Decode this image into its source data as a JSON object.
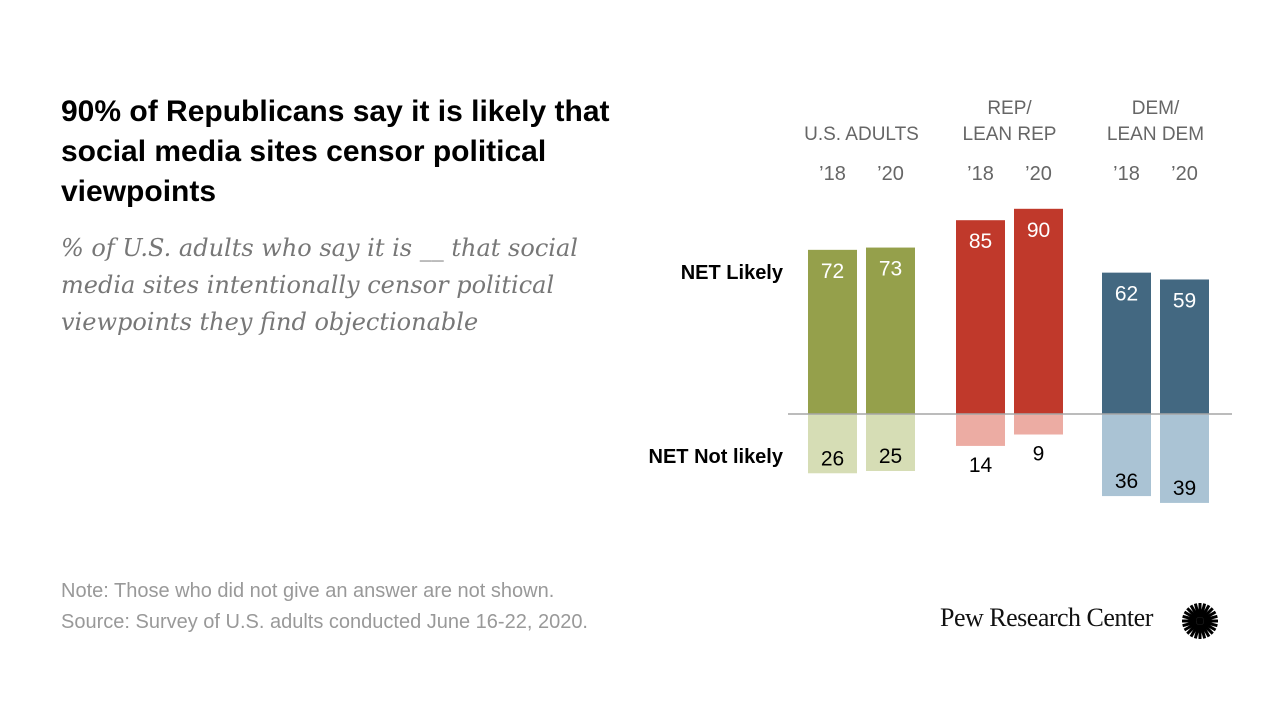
{
  "title": "90% of Republicans say it is likely that social media sites censor political viewpoints",
  "subtitle": "% of U.S. adults who say it is __ that social media sites intentionally censor political viewpoints they find objectionable",
  "note": "Note: Those who did not give an answer are not shown.",
  "source": "Source: Survey of U.S. adults conducted June 16-22, 2020.",
  "logo": "Pew Research Center",
  "chart_data": {
    "type": "bar",
    "row_labels": [
      "NET Likely",
      "NET Not likely"
    ],
    "groups": [
      {
        "label_lines": [
          "U.S. ADULTS"
        ],
        "years": [
          "’18",
          "’20"
        ],
        "likely": [
          72,
          73
        ],
        "not_likely": [
          26,
          25
        ],
        "color_likely": "#95a04b",
        "color_not": "#d6ddb5"
      },
      {
        "label_lines": [
          "REP/",
          "LEAN REP"
        ],
        "years": [
          "’18",
          "’20"
        ],
        "likely": [
          85,
          90
        ],
        "not_likely": [
          14,
          9
        ],
        "color_likely": "#c0392b",
        "color_not": "#ecaca3"
      },
      {
        "label_lines": [
          "DEM/",
          "LEAN DEM"
        ],
        "years": [
          "’18",
          "’20"
        ],
        "likely": [
          62,
          59
        ],
        "not_likely": [
          36,
          39
        ],
        "color_likely": "#436881",
        "color_not": "#aac3d4"
      }
    ],
    "axis_color": "#a6a6a6"
  }
}
